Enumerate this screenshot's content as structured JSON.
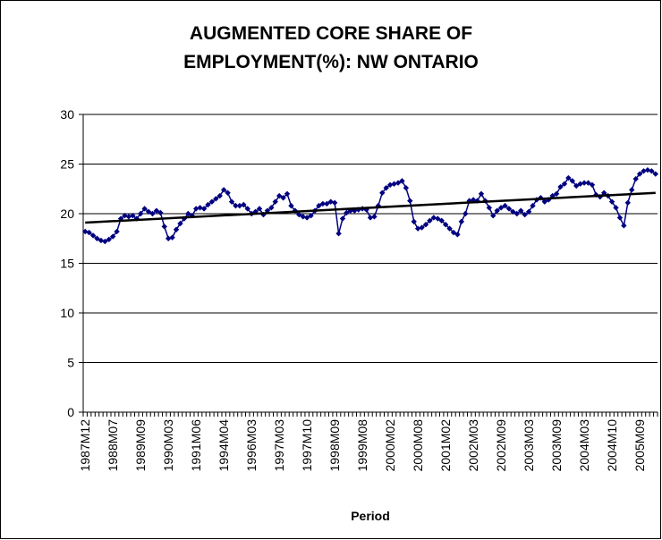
{
  "chart_data": {
    "type": "line",
    "title": [
      "AUGMENTED CORE SHARE OF",
      "EMPLOYMENT(%): NW ONTARIO"
    ],
    "x_label": "Period",
    "categories": [
      "1987M12",
      null,
      null,
      null,
      null,
      null,
      null,
      "1988M07",
      null,
      null,
      null,
      null,
      null,
      null,
      "1989M09",
      null,
      null,
      null,
      null,
      null,
      null,
      "1990M03",
      null,
      null,
      null,
      null,
      null,
      null,
      "1991M06",
      null,
      null,
      null,
      null,
      null,
      null,
      "1994M04",
      null,
      null,
      null,
      null,
      null,
      null,
      "1996M03",
      null,
      null,
      null,
      null,
      null,
      null,
      "1997M03",
      null,
      null,
      null,
      null,
      null,
      null,
      "1997M10",
      null,
      null,
      null,
      null,
      null,
      null,
      "1998M09",
      null,
      null,
      null,
      null,
      null,
      null,
      "1999M08",
      null,
      null,
      null,
      null,
      null,
      null,
      "2000M02",
      null,
      null,
      null,
      null,
      null,
      null,
      "2000M08",
      null,
      null,
      null,
      null,
      null,
      null,
      "2001M02",
      null,
      null,
      null,
      null,
      null,
      null,
      "2002M03",
      null,
      null,
      null,
      null,
      null,
      null,
      "2002M09",
      null,
      null,
      null,
      null,
      null,
      null,
      "2003M03",
      null,
      null,
      null,
      null,
      null,
      null,
      "2003M09",
      null,
      null,
      null,
      null,
      null,
      null,
      "2004M03",
      null,
      null,
      null,
      null,
      null,
      null,
      "2004M10",
      null,
      null,
      null,
      null,
      null,
      null,
      "2005M09",
      null,
      null,
      null,
      null
    ],
    "series": [
      {
        "color": "#000080",
        "values": [
          18.2,
          18.1,
          17.8,
          17.5,
          17.3,
          17.2,
          17.4,
          17.7,
          18.2,
          19.5,
          19.8,
          19.7,
          19.8,
          19.5,
          20.0,
          20.5,
          20.2,
          20.0,
          20.3,
          20.1,
          18.7,
          17.5,
          17.6,
          18.4,
          19.0,
          19.5,
          20.0,
          19.8,
          20.5,
          20.6,
          20.5,
          20.9,
          21.2,
          21.5,
          21.8,
          22.4,
          22.1,
          21.2,
          20.8,
          20.8,
          20.9,
          20.5,
          20.0,
          20.2,
          20.5,
          19.9,
          20.3,
          20.6,
          21.2,
          21.8,
          21.6,
          22.0,
          20.8,
          20.3,
          19.9,
          19.7,
          19.6,
          19.8,
          20.3,
          20.8,
          21.0,
          21.0,
          21.2,
          21.1,
          18.0,
          19.5,
          20.1,
          20.3,
          20.3,
          20.4,
          20.5,
          20.4,
          19.6,
          19.7,
          20.8,
          22.1,
          22.6,
          22.9,
          23.0,
          23.1,
          23.3,
          22.6,
          21.3,
          19.2,
          18.5,
          18.6,
          18.9,
          19.3,
          19.6,
          19.5,
          19.3,
          18.9,
          18.5,
          18.1,
          17.9,
          19.2,
          20.0,
          21.3,
          21.4,
          21.3,
          22.0,
          21.3,
          20.6,
          19.8,
          20.3,
          20.6,
          20.8,
          20.5,
          20.2,
          20.0,
          20.3,
          19.9,
          20.2,
          20.8,
          21.4,
          21.6,
          21.2,
          21.4,
          21.8,
          22.0,
          22.7,
          23.0,
          23.6,
          23.3,
          22.8,
          23.0,
          23.1,
          23.1,
          22.9,
          21.9,
          21.7,
          22.1,
          21.8,
          21.2,
          20.6,
          19.6,
          18.8,
          21.1,
          22.4,
          23.5,
          24.0,
          24.3,
          24.4,
          24.3,
          24.0
        ]
      }
    ],
    "trendline": {
      "color": "#000000",
      "values": [
        19.1,
        22.1
      ]
    },
    "ylim": [
      0,
      30
    ],
    "yticks": [
      0,
      5,
      10,
      15,
      20,
      25,
      30
    ],
    "grid": true
  }
}
